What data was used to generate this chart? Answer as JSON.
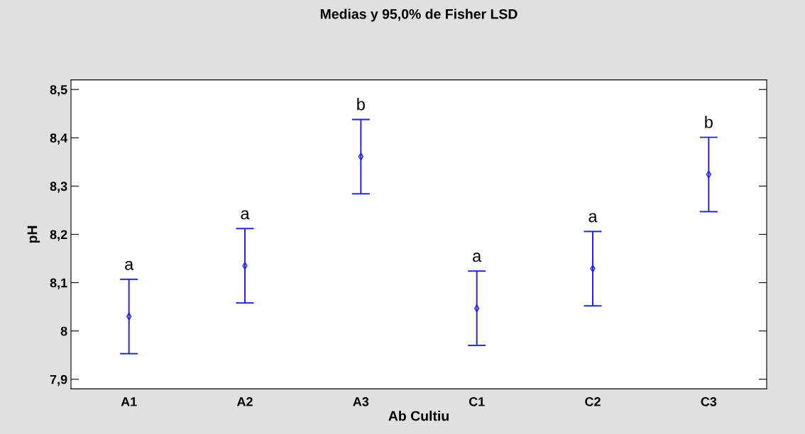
{
  "chart_data": {
    "type": "scatter",
    "title": "Medias y 95,0% de Fisher LSD",
    "xlabel": "Ab Cultiu",
    "ylabel": "pH",
    "categories": [
      "A1",
      "A2",
      "A3",
      "C1",
      "C2",
      "C3"
    ],
    "series": [
      {
        "color": "#2020e0",
        "values": [
          8.03,
          8.135,
          8.361,
          8.047,
          8.129,
          8.324
        ],
        "errors": [
          0.077,
          0.077,
          0.077,
          0.077,
          0.077,
          0.077
        ]
      }
    ],
    "marker": "diamond",
    "ylim": [
      7.88,
      8.52
    ],
    "yticks": [
      {
        "value": 7.9,
        "label": "7,9"
      },
      8,
      {
        "value": 8.1,
        "label": "8,1"
      },
      {
        "value": 8.2,
        "label": "8,2"
      },
      {
        "value": 8.3,
        "label": "8,3"
      },
      {
        "value": 8.4,
        "label": "8,4"
      },
      {
        "value": 8.5,
        "label": "8,5"
      }
    ],
    "grid": false,
    "legend": false,
    "annotations": [
      "a",
      "a",
      "b",
      "a",
      "a",
      "b"
    ]
  }
}
